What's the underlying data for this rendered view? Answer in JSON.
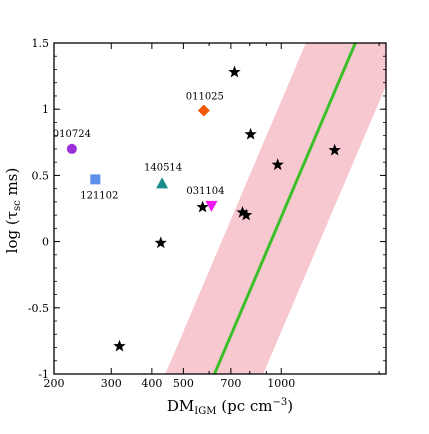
{
  "chart_data": {
    "type": "scatter",
    "xlabel_main": "DM",
    "xlabel_sub": "IGM",
    "xlabel_rest": " (pc cm",
    "xlabel_sup": "−3",
    "xlabel_close": ")",
    "ylabel": "log (τ",
    "ylabel_sub": "sc",
    "ylabel_rest": " ms)",
    "xscale": "log",
    "xlim": [
      200,
      2100
    ],
    "ylim": [
      -1,
      1.5
    ],
    "x_ticks": [
      {
        "value": 200,
        "label": "200"
      },
      {
        "value": 300,
        "label": "300"
      },
      {
        "value": 400,
        "label": "400"
      },
      {
        "value": 500,
        "label": "500"
      },
      {
        "value": 700,
        "label": "700"
      },
      {
        "value": 1000,
        "label": "1000"
      }
    ],
    "y_ticks": [
      {
        "value": 1.5,
        "label": "1.5"
      },
      {
        "value": 1,
        "label": "1"
      },
      {
        "value": 0.5,
        "label": "0.5"
      },
      {
        "value": 0,
        "label": "0"
      },
      {
        "value": -0.5,
        "label": "-0.5"
      },
      {
        "value": -1,
        "label": "-1"
      }
    ],
    "highlighted": [
      {
        "name": "010724",
        "x": 227,
        "y": 0.7,
        "marker": "circle",
        "color": "#9b30d9"
      },
      {
        "name": "121102",
        "x": 268,
        "y": 0.47,
        "marker": "square",
        "color": "#5b8fe8"
      },
      {
        "name": "140514",
        "x": 430,
        "y": 0.44,
        "marker": "triangle-up",
        "color": "#1a8c8c"
      },
      {
        "name": "011025",
        "x": 578,
        "y": 0.99,
        "marker": "diamond",
        "color": "#f05a0a"
      },
      {
        "name": "031104",
        "x": 610,
        "y": 0.27,
        "marker": "triangle-down",
        "color": "#f018f0"
      }
    ],
    "stars": [
      {
        "x": 318,
        "y": -0.79
      },
      {
        "x": 426,
        "y": -0.01
      },
      {
        "x": 573,
        "y": 0.26
      },
      {
        "x": 718,
        "y": 1.28
      },
      {
        "x": 760,
        "y": 0.22
      },
      {
        "x": 780,
        "y": 0.2
      },
      {
        "x": 805,
        "y": 0.81
      },
      {
        "x": 975,
        "y": 0.58
      },
      {
        "x": 1460,
        "y": 0.69
      }
    ],
    "fit_line": {
      "x0": 623,
      "y0": -1,
      "x1": 1690,
      "y1": 1.5,
      "color": "#3dbf2a"
    },
    "band": {
      "lower_x0": 440,
      "lower_x1": 1190,
      "upper_x0": 880,
      "upper_x1": 2390,
      "color": "#f8c8d0"
    }
  }
}
